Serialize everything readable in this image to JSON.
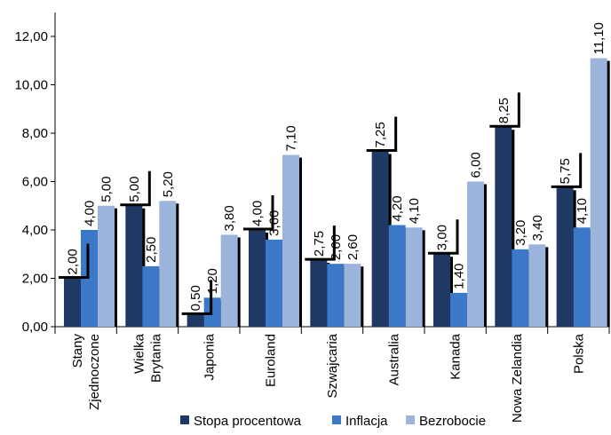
{
  "chart_data": {
    "type": "bar",
    "categories": [
      [
        "Stany",
        "Zjednoczone"
      ],
      [
        "Wielka",
        "Brytania"
      ],
      [
        "Japonia"
      ],
      [
        "Euroland"
      ],
      [
        "Szwajcaria"
      ],
      [
        "Australia"
      ],
      [
        "Kanada"
      ],
      [
        "Nowa Zelandia"
      ],
      [
        "Polska"
      ]
    ],
    "series": [
      {
        "name": "Stopa procentowa",
        "color": "#1f3864",
        "values": [
          2.0,
          5.0,
          0.5,
          4.0,
          2.75,
          7.25,
          3.0,
          8.25,
          5.75
        ],
        "labels": [
          "2,00",
          "5,00",
          "0,50",
          "4,00",
          "2,75",
          "7,25",
          "3,00",
          "8,25",
          "5,75"
        ]
      },
      {
        "name": "Inflacja",
        "color": "#3c78c8",
        "values": [
          4.0,
          2.5,
          1.2,
          3.6,
          2.6,
          4.2,
          1.4,
          3.2,
          4.1
        ],
        "labels": [
          "4,00",
          "2,50",
          "1,20",
          "3,60",
          "2,60",
          "4,20",
          "1,40",
          "3,20",
          "4,10"
        ]
      },
      {
        "name": "Bezrobocie",
        "color": "#9cb4dc",
        "values": [
          5.0,
          5.2,
          3.8,
          7.1,
          2.6,
          4.1,
          6.0,
          3.4,
          11.1
        ],
        "labels": [
          "5,00",
          "5,20",
          "3,80",
          "7,10",
          "2,60",
          "4,10",
          "6,00",
          "3,40",
          "11,10"
        ]
      }
    ],
    "yticks": [
      "0,00",
      "2,00",
      "4,00",
      "6,00",
      "8,00",
      "10,00",
      "12,00"
    ],
    "ylim": [
      0,
      13
    ],
    "legend_position": "bottom",
    "grid": false
  }
}
